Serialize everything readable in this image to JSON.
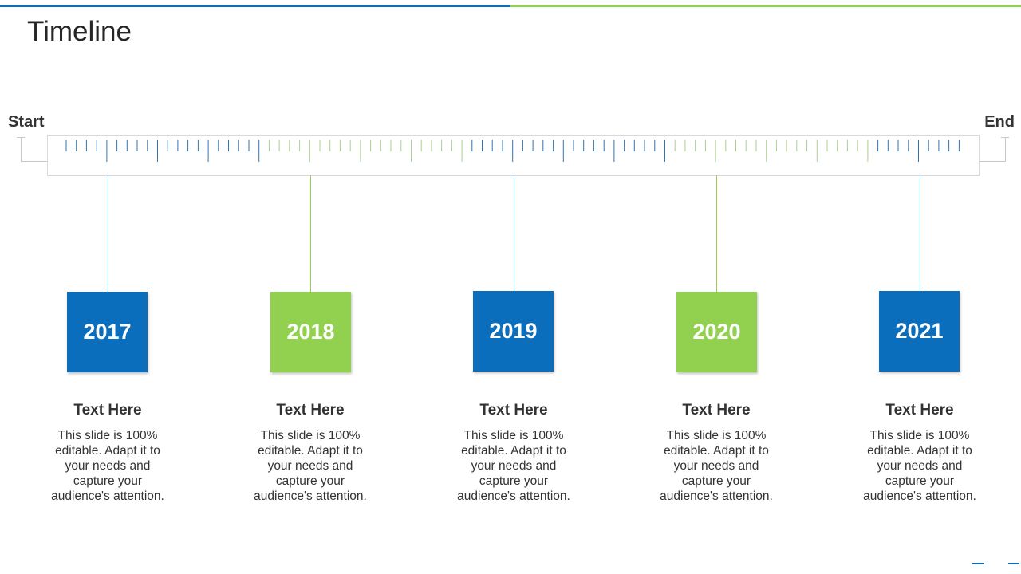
{
  "title": "Timeline",
  "start_label": "Start",
  "end_label": "End",
  "colors": {
    "blue": "#0A6EBD",
    "green": "#92D050",
    "tick_blue": "#2E75B6",
    "tick_green": "#A9D18E"
  },
  "items": [
    {
      "year": "2017",
      "color": "blue",
      "heading": "Text Here",
      "body": "This slide is 100% editable. Adapt it to your needs and capture your audience's attention."
    },
    {
      "year": "2018",
      "color": "green",
      "heading": "Text Here",
      "body": "This slide is 100% editable. Adapt it to your needs and capture your audience's attention."
    },
    {
      "year": "2019",
      "color": "blue",
      "heading": "Text Here",
      "body": "This slide is 100% editable. Adapt it to your needs and capture your audience's attention."
    },
    {
      "year": "2020",
      "color": "green",
      "heading": "Text Here",
      "body": "This slide is 100% editable. Adapt it to your needs and capture your audience's attention."
    },
    {
      "year": "2021",
      "color": "blue",
      "heading": "Text Here",
      "body": "This slide is 100% editable. Adapt it to your needs and capture your audience's attention."
    }
  ]
}
